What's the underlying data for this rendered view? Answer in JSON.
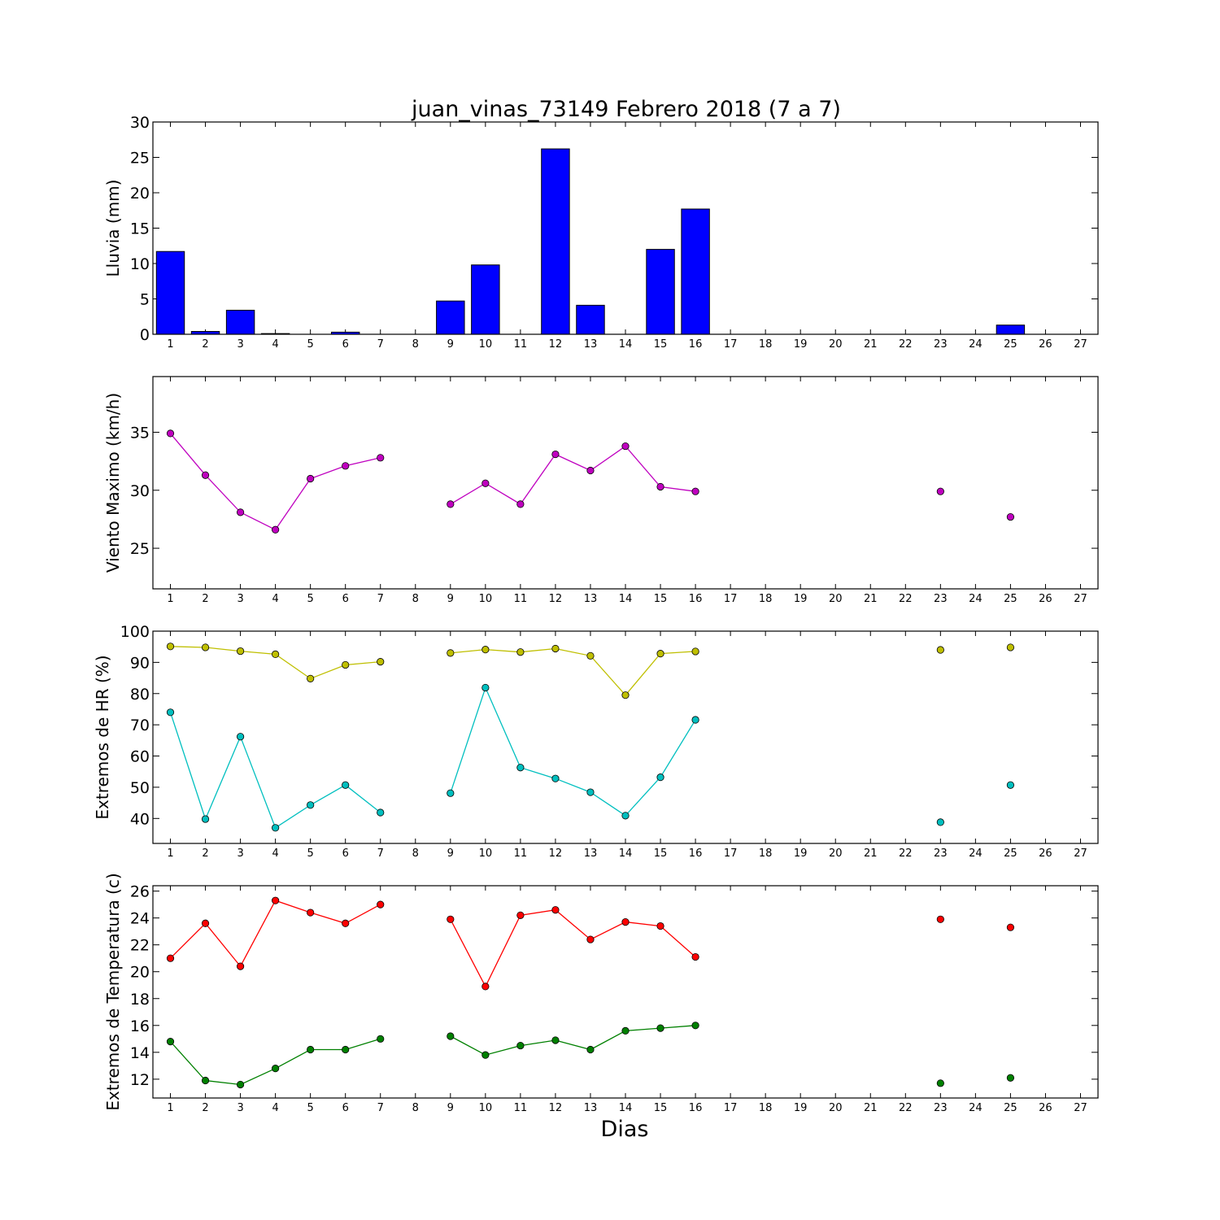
{
  "title": "juan_vinas_73149 Febrero 2018  (7 a 7)",
  "xlabel": "Dias",
  "chart_data": [
    {
      "type": "bar",
      "ylabel": "Lluvia (mm)",
      "ylim": [
        0,
        30
      ],
      "yticks": [
        0,
        5,
        10,
        15,
        20,
        25,
        30
      ],
      "xlim": [
        0.5,
        27.5
      ],
      "xticks": [
        1,
        2,
        3,
        4,
        5,
        6,
        7,
        8,
        9,
        10,
        11,
        12,
        13,
        14,
        15,
        16,
        17,
        18,
        19,
        20,
        21,
        22,
        23,
        24,
        25,
        26,
        27
      ],
      "categories": [
        1,
        2,
        3,
        4,
        5,
        6,
        7,
        9,
        10,
        12,
        13,
        15,
        16,
        25
      ],
      "values": [
        11.7,
        0.4,
        3.4,
        0.1,
        0,
        0.3,
        0,
        4.7,
        9.8,
        26.2,
        4.1,
        12.0,
        17.7,
        1.3
      ],
      "color": "#0000ff"
    },
    {
      "type": "line",
      "ylabel": "Viento Maximo (km/h)",
      "ylim": [
        21.5,
        39.8
      ],
      "yticks": [
        25,
        30,
        35
      ],
      "xlim": [
        0.5,
        27.5
      ],
      "xticks": [
        1,
        2,
        3,
        4,
        5,
        6,
        7,
        8,
        9,
        10,
        11,
        12,
        13,
        14,
        15,
        16,
        17,
        18,
        19,
        20,
        21,
        22,
        23,
        24,
        25,
        26,
        27
      ],
      "series": [
        {
          "color": "#bf00bf",
          "segments": [
            [
              [
                1,
                34.9
              ],
              [
                2,
                31.3
              ],
              [
                3,
                28.1
              ],
              [
                4,
                26.6
              ],
              [
                5,
                31.0
              ],
              [
                6,
                32.1
              ],
              [
                7,
                32.8
              ]
            ],
            [
              [
                9,
                28.8
              ],
              [
                10,
                30.6
              ],
              [
                11,
                28.8
              ],
              [
                12,
                33.1
              ],
              [
                13,
                31.7
              ],
              [
                14,
                33.8
              ],
              [
                15,
                30.3
              ],
              [
                16,
                29.9
              ]
            ],
            [
              [
                23,
                29.9
              ]
            ],
            [
              [
                25,
                27.7
              ]
            ]
          ]
        }
      ]
    },
    {
      "type": "line",
      "ylabel": "Extremos de HR (%)",
      "ylim": [
        32,
        100
      ],
      "yticks": [
        40,
        50,
        60,
        70,
        80,
        90,
        100
      ],
      "xlim": [
        0.5,
        27.5
      ],
      "xticks": [
        1,
        2,
        3,
        4,
        5,
        6,
        7,
        8,
        9,
        10,
        11,
        12,
        13,
        14,
        15,
        16,
        17,
        18,
        19,
        20,
        21,
        22,
        23,
        24,
        25,
        26,
        27
      ],
      "series": [
        {
          "color": "#bfbf00",
          "segments": [
            [
              [
                1,
                95.1
              ],
              [
                2,
                94.8
              ],
              [
                3,
                93.6
              ],
              [
                4,
                92.6
              ],
              [
                5,
                84.8
              ],
              [
                6,
                89.2
              ],
              [
                7,
                90.2
              ]
            ],
            [
              [
                9,
                93.0
              ],
              [
                10,
                94.1
              ],
              [
                11,
                93.3
              ],
              [
                12,
                94.4
              ],
              [
                13,
                92.1
              ],
              [
                14,
                79.5
              ],
              [
                15,
                92.8
              ],
              [
                16,
                93.5
              ]
            ],
            [
              [
                23,
                94.0
              ]
            ],
            [
              [
                25,
                94.8
              ]
            ]
          ]
        },
        {
          "color": "#00bfbf",
          "segments": [
            [
              [
                1,
                74.0
              ],
              [
                2,
                39.8
              ],
              [
                3,
                66.2
              ],
              [
                4,
                37.0
              ],
              [
                5,
                44.3
              ],
              [
                6,
                50.7
              ],
              [
                7,
                41.9
              ]
            ],
            [
              [
                9,
                48.1
              ],
              [
                10,
                81.9
              ],
              [
                11,
                56.3
              ],
              [
                12,
                52.8
              ],
              [
                13,
                48.4
              ],
              [
                14,
                40.9
              ],
              [
                15,
                53.2
              ],
              [
                16,
                71.6
              ]
            ],
            [
              [
                23,
                38.8
              ]
            ],
            [
              [
                25,
                50.7
              ]
            ]
          ]
        }
      ]
    },
    {
      "type": "line",
      "ylabel": "Extremos de Temperatura (c)",
      "ylim": [
        10.6,
        26.4
      ],
      "yticks": [
        12,
        14,
        16,
        18,
        20,
        22,
        24,
        26
      ],
      "xlim": [
        0.5,
        27.5
      ],
      "xticks": [
        1,
        2,
        3,
        4,
        5,
        6,
        7,
        8,
        9,
        10,
        11,
        12,
        13,
        14,
        15,
        16,
        17,
        18,
        19,
        20,
        21,
        22,
        23,
        24,
        25,
        26,
        27
      ],
      "series": [
        {
          "color": "#ff0000",
          "segments": [
            [
              [
                1,
                21.0
              ],
              [
                2,
                23.6
              ],
              [
                3,
                20.4
              ],
              [
                4,
                25.3
              ],
              [
                5,
                24.4
              ],
              [
                6,
                23.6
              ],
              [
                7,
                25.0
              ]
            ],
            [
              [
                9,
                23.9
              ],
              [
                10,
                18.9
              ],
              [
                11,
                24.2
              ],
              [
                12,
                24.6
              ],
              [
                13,
                22.4
              ],
              [
                14,
                23.7
              ],
              [
                15,
                23.4
              ],
              [
                16,
                21.1
              ]
            ],
            [
              [
                23,
                23.9
              ]
            ],
            [
              [
                25,
                23.3
              ]
            ]
          ]
        },
        {
          "color": "#008000",
          "segments": [
            [
              [
                1,
                14.8
              ],
              [
                2,
                11.9
              ],
              [
                3,
                11.6
              ],
              [
                4,
                12.8
              ],
              [
                5,
                14.2
              ],
              [
                6,
                14.2
              ],
              [
                7,
                15.0
              ]
            ],
            [
              [
                9,
                15.2
              ],
              [
                10,
                13.8
              ],
              [
                11,
                14.5
              ],
              [
                12,
                14.9
              ],
              [
                13,
                14.2
              ],
              [
                14,
                15.6
              ],
              [
                15,
                15.8
              ],
              [
                16,
                16.0
              ]
            ],
            [
              [
                23,
                11.7
              ]
            ],
            [
              [
                25,
                12.1
              ]
            ]
          ]
        }
      ]
    }
  ]
}
